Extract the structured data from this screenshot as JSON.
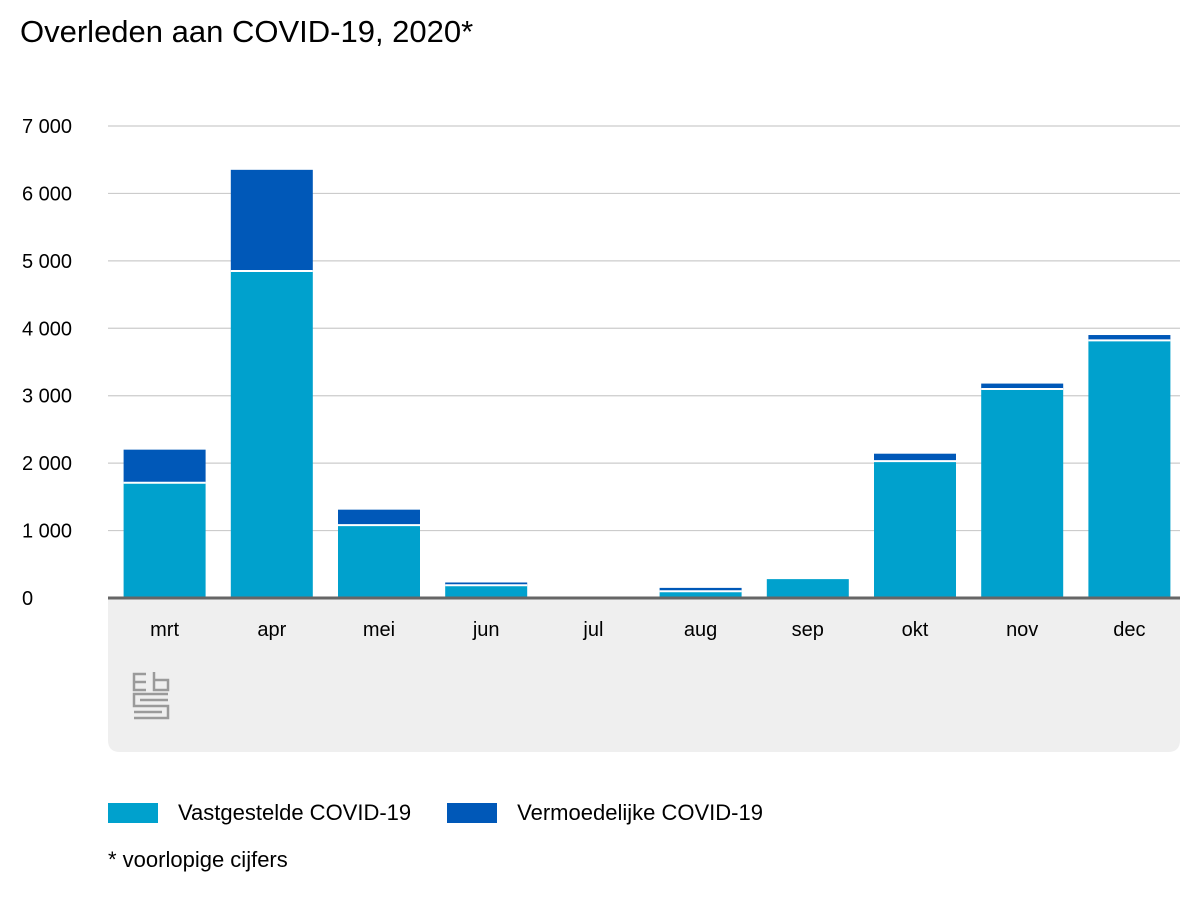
{
  "chart_data": {
    "type": "bar",
    "stacked": true,
    "title": "Overleden aan COVID-19, 2020*",
    "xlabel": "",
    "ylabel": "",
    "categories": [
      "mrt",
      "apr",
      "mei",
      "jun",
      "jul",
      "aug",
      "sep",
      "okt",
      "nov",
      "dec"
    ],
    "series": [
      {
        "name": "Vastgestelde COVID-19",
        "color": "#00a1cd",
        "values": [
          1710,
          4850,
          1080,
          190,
          10,
          100,
          280,
          2030,
          3100,
          3820
        ]
      },
      {
        "name": "Vermoedelijke COVID-19",
        "color": "#0058b8",
        "values": [
          490,
          1500,
          230,
          40,
          0,
          50,
          0,
          110,
          80,
          80
        ]
      }
    ],
    "ylim": [
      0,
      7000
    ],
    "yticks": [
      0,
      1000,
      2000,
      3000,
      4000,
      5000,
      6000,
      7000
    ],
    "ytick_labels": [
      "0",
      "1 000",
      "2 000",
      "3 000",
      "4 000",
      "5 000",
      "6 000",
      "7 000"
    ],
    "grid": true,
    "legend_position": "bottom-left"
  },
  "footnote": "* voorlopige cijfers",
  "logo": "cbs",
  "colors": {
    "axis_panel": "#efefef",
    "grid": "#cccccc",
    "axis": "#666666"
  }
}
